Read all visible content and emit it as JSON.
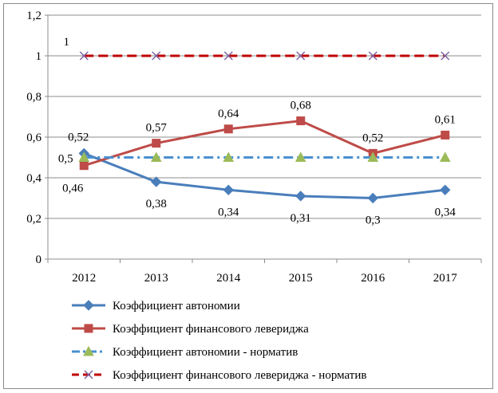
{
  "chart_data": {
    "type": "line",
    "categories": [
      "2012",
      "2013",
      "2014",
      "2015",
      "2016",
      "2017"
    ],
    "ylim": [
      0,
      1.2
    ],
    "yticks": [
      "0",
      "0,2",
      "0,4",
      "0,6",
      "0,8",
      "1",
      "1,2"
    ],
    "grid": true,
    "legend_position": "bottom",
    "series": [
      {
        "name": "Коэффициент автономии",
        "values": [
          0.52,
          0.38,
          0.34,
          0.31,
          0.3,
          0.34
        ],
        "labels": [
          "0,52",
          "0,38",
          "0,34",
          "0,31",
          "0,3",
          "0,34"
        ],
        "color": "#4a7ebb",
        "marker": "diamond",
        "dash": "solid"
      },
      {
        "name": "Коэффициент финансового левериджа",
        "values": [
          0.46,
          0.57,
          0.64,
          0.68,
          0.52,
          0.61
        ],
        "labels": [
          "0,46",
          "0,57",
          "0,64",
          "0,68",
          "0,52",
          "0,61"
        ],
        "color": "#be4b48",
        "marker": "square",
        "dash": "solid"
      },
      {
        "name": "Коэффициент автономии - норматив",
        "values": [
          0.5,
          0.5,
          0.5,
          0.5,
          0.5,
          0.5
        ],
        "labels": [
          "0,5"
        ],
        "color": "#4a90d0",
        "marker": "triangle",
        "marker_color": "#9bbb59",
        "dash": "dashdot"
      },
      {
        "name": "Коэффициент финансового левериджа - норматив",
        "values": [
          1,
          1,
          1,
          1,
          1,
          1
        ],
        "labels": [
          "1"
        ],
        "color": "#c00000",
        "marker": "x",
        "marker_color": "#8064a2",
        "dash": "dash"
      }
    ]
  }
}
